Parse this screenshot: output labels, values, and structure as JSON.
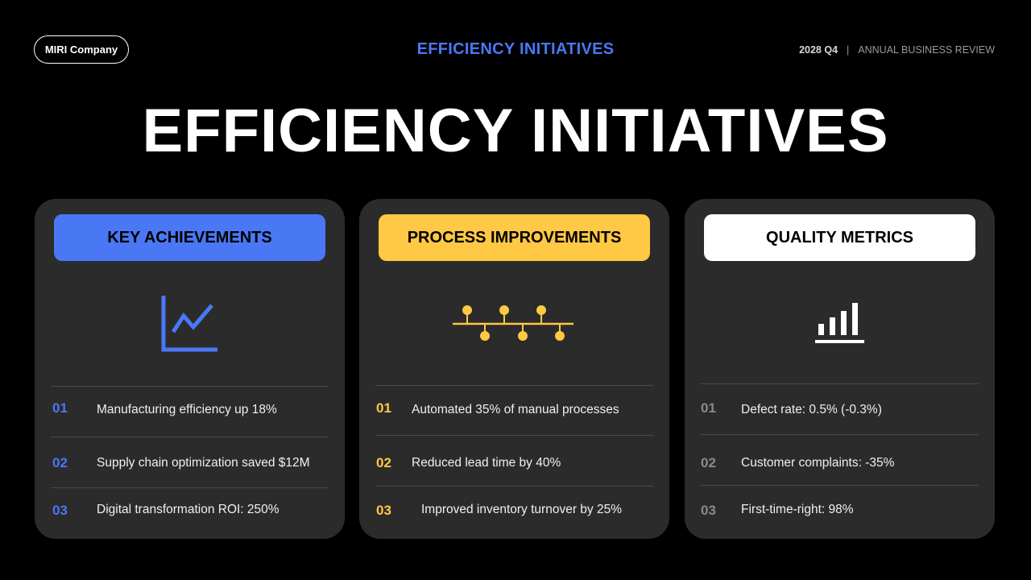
{
  "header": {
    "company": "MIRI Company",
    "section_title": "EFFICIENCY INITIATIVES",
    "period": "2028 Q4",
    "separator": "|",
    "subtitle": "ANNUAL BUSINESS REVIEW"
  },
  "main": {
    "title": "EFFICIENCY INITIATIVES"
  },
  "colors": {
    "background": "#000000",
    "card": "#2b2b2b",
    "blue": "#4a78f5",
    "yellow": "#ffc845",
    "white": "#ffffff",
    "gray_num": "#8a8a8a"
  },
  "cards": [
    {
      "title": "KEY ACHIEVEMENTS",
      "icon": "line-chart-icon",
      "items": [
        {
          "num": "01",
          "text": "Manufacturing efficiency up 18%"
        },
        {
          "num": "02",
          "text": "Supply chain optimization saved $12M"
        },
        {
          "num": "03",
          "text": "Digital transformation ROI: 250%"
        }
      ]
    },
    {
      "title": "PROCESS IMPROVEMENTS",
      "icon": "timeline-icon",
      "items": [
        {
          "num": "01",
          "text": "Automated 35% of manual processes"
        },
        {
          "num": "02",
          "text": "Reduced lead time by 40%"
        },
        {
          "num": "03",
          "text": "Improved inventory turnover by 25%"
        }
      ]
    },
    {
      "title": "QUALITY METRICS",
      "icon": "bar-chart-icon",
      "items": [
        {
          "num": "01",
          "text": "Defect rate: 0.5% (-0.3%)"
        },
        {
          "num": "02",
          "text": "Customer complaints: -35%"
        },
        {
          "num": "03",
          "text": "First-time-right: 98%"
        }
      ]
    }
  ]
}
